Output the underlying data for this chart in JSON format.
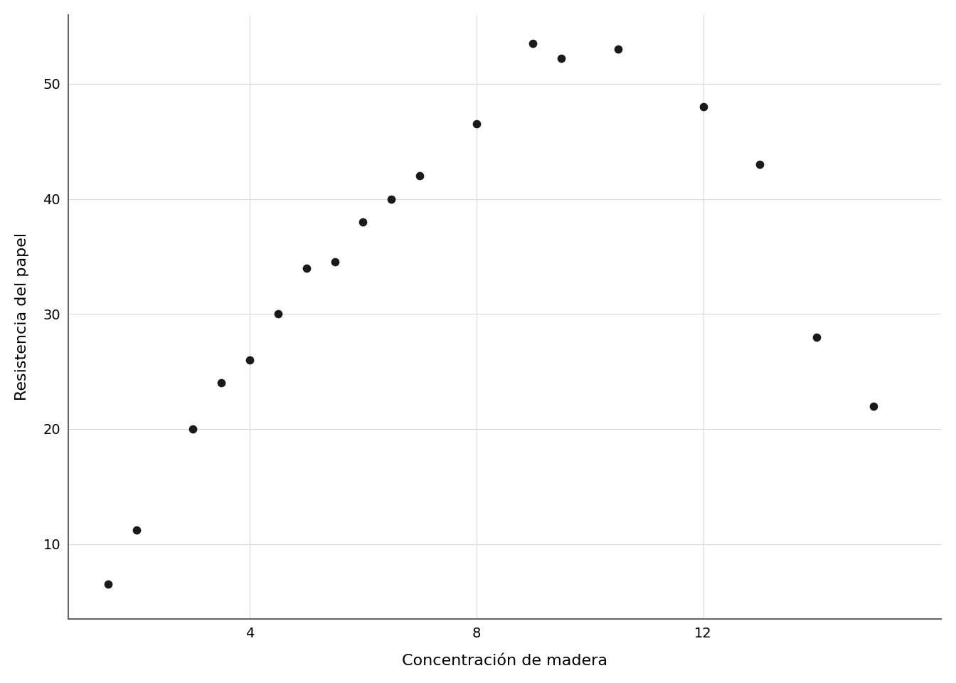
{
  "x": [
    1.5,
    2.0,
    3.0,
    3.5,
    4.0,
    4.5,
    5.0,
    5.5,
    6.0,
    6.5,
    7.0,
    8.0,
    9.0,
    9.5,
    10.5,
    12.0,
    13.0,
    14.0,
    15.0
  ],
  "y": [
    6.5,
    11.2,
    20.0,
    24.0,
    26.0,
    30.0,
    34.0,
    34.5,
    38.0,
    40.0,
    42.0,
    46.5,
    53.5,
    52.2,
    53.0,
    48.0,
    43.0,
    28.0,
    22.0
  ],
  "xlabel": "Concentración de madera",
  "ylabel": "Resistencia del papel",
  "xlim": [
    0.8,
    16.2
  ],
  "ylim": [
    3.5,
    56
  ],
  "xticks": [
    4,
    8,
    12
  ],
  "yticks": [
    10,
    20,
    30,
    40,
    50
  ],
  "dot_color": "#1a1a1a",
  "dot_size": 55,
  "background_color": "#ffffff",
  "plot_bg_color": "#ffffff",
  "grid_color": "#d8d8d8",
  "spine_color": "#666666",
  "label_fontsize": 16,
  "tick_fontsize": 14
}
